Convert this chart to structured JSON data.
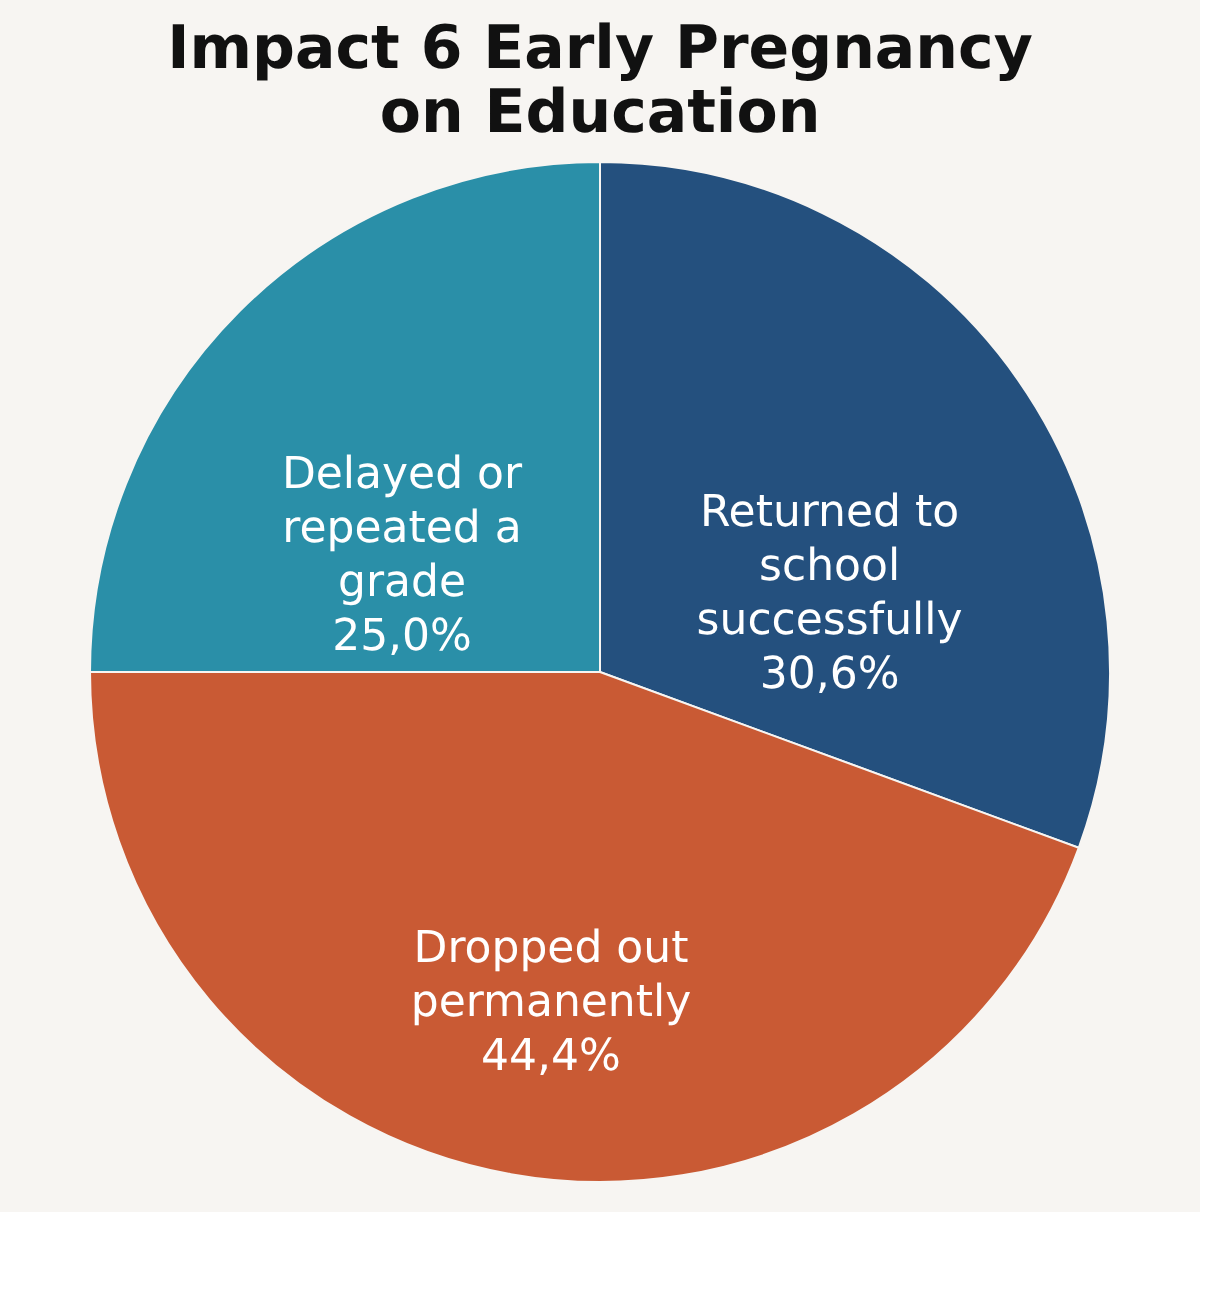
{
  "chart_data": {
    "type": "pie",
    "title": "Impact 6 Early Pregnancy on Education",
    "categories": [
      "Returned to school successfully",
      "Dropped out permanently",
      "Delayed or repeated a grade"
    ],
    "values": [
      30.6,
      44.4,
      25.0
    ],
    "colors": [
      "#24507e",
      "#c95a34",
      "#2a8fa8"
    ],
    "value_labels": [
      "30,6%",
      "44,4%",
      "25,0%"
    ],
    "legend": false
  }
}
